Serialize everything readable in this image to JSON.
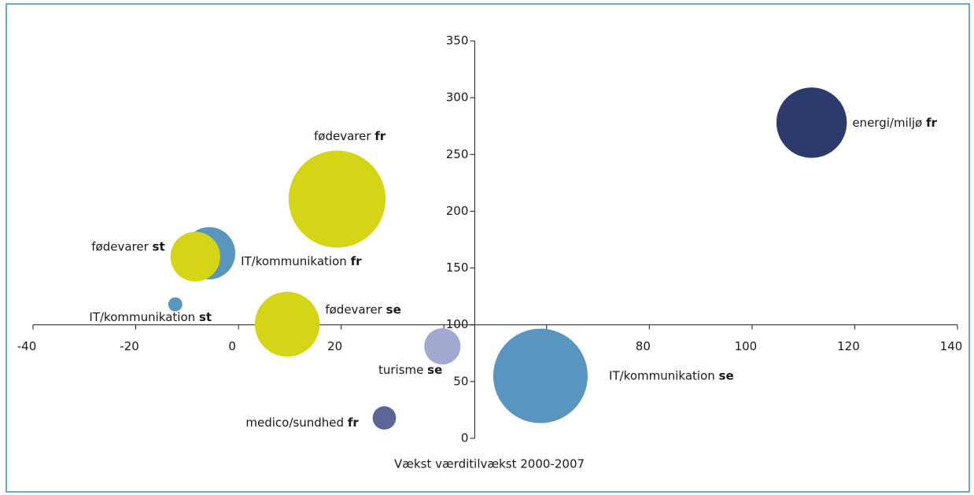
{
  "chart_data": {
    "type": "bubble",
    "x_label": "Vækst værditilvækst 2000-2007",
    "xlim": [
      -40,
      140
    ],
    "xticks": [
      -40,
      -20,
      0,
      20,
      40,
      60,
      80,
      100,
      120,
      140
    ],
    "ylim": [
      0,
      350
    ],
    "yticks": [
      0,
      50,
      100,
      150,
      200,
      250,
      300,
      350
    ],
    "x_axis_crosses_y": 100,
    "y_axis_crosses_x": 46,
    "points": [
      {
        "label": "energi/miljø",
        "tag": "fr",
        "x": 111.6,
        "y": 278,
        "size": 20,
        "color": "#2c3a6c"
      },
      {
        "label": "fødevarer",
        "tag": "fr",
        "x": 19.2,
        "y": 210.7,
        "size": 38,
        "color": "#d5d518"
      },
      {
        "label": "IT/kommunikation",
        "tag": "fr",
        "x": -5.7,
        "y": 163,
        "size": 11,
        "color": "#5a95c0"
      },
      {
        "label": "fødevarer",
        "tag": "st",
        "x": -8.4,
        "y": 160,
        "size": 10,
        "color": "#d5d518"
      },
      {
        "label": "IT/kommunikation",
        "tag": "st",
        "x": -12.3,
        "y": 118,
        "size": 0.8,
        "color": "#5a95c0"
      },
      {
        "label": "fødevarer",
        "tag": "se",
        "x": 9.5,
        "y": 100.5,
        "size": 17,
        "color": "#d5d518"
      },
      {
        "label": "turisme",
        "tag": "se",
        "x": 39.7,
        "y": 81,
        "size": 5.3,
        "color": "#a2a9d1"
      },
      {
        "label": "IT/kommunikation",
        "tag": "se",
        "x": 58.8,
        "y": 55,
        "size": 36,
        "color": "#5a95c0"
      },
      {
        "label": "medico/sundhed",
        "tag": "fr",
        "x": 28.4,
        "y": 18,
        "size": 2.2,
        "color": "#5b6596"
      }
    ]
  }
}
